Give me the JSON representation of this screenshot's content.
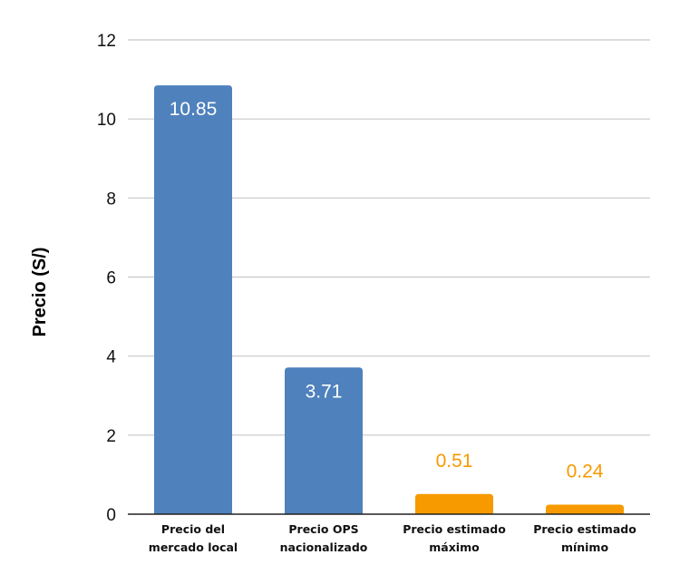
{
  "chart_data": {
    "type": "bar",
    "title": "",
    "xlabel": "",
    "ylabel": "Precio (S/)",
    "ylim": [
      0,
      12
    ],
    "yticks": [
      0,
      2,
      4,
      6,
      8,
      10,
      12
    ],
    "grid": true,
    "categories": [
      [
        "Precio del",
        "mercado local"
      ],
      [
        "Precio OPS",
        "nacionalizado"
      ],
      [
        "Precio estimado",
        "máximo"
      ],
      [
        "Precio estimado",
        "mínimo"
      ]
    ],
    "values": [
      10.85,
      3.71,
      0.51,
      0.24
    ],
    "data_labels": [
      "10.85",
      "3.71",
      "0.51",
      "0.24"
    ],
    "bar_colors": [
      "#4f81bd",
      "#4f81bd",
      "#f79a00",
      "#f79a00"
    ],
    "label_colors": [
      "#ffffff",
      "#ffffff",
      "#f79a00",
      "#f79a00"
    ],
    "label_positions": [
      "inside",
      "inside",
      "above",
      "above"
    ],
    "colors": {
      "gridline": "#c8c8c8",
      "axis": "#222222"
    }
  }
}
